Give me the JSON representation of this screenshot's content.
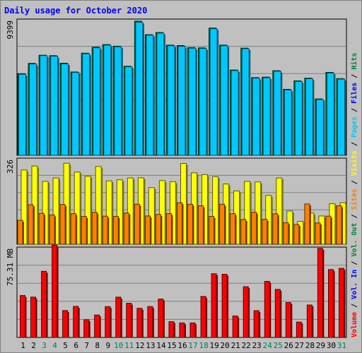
{
  "chart_data": {
    "type": "bar",
    "title": "Daily usage for October 2020",
    "categories": [
      "1",
      "2",
      "3",
      "4",
      "5",
      "6",
      "7",
      "8",
      "9",
      "10",
      "11",
      "12",
      "13",
      "14",
      "15",
      "16",
      "17",
      "18",
      "19",
      "20",
      "21",
      "22",
      "23",
      "24",
      "25",
      "26",
      "27",
      "28",
      "29",
      "30",
      "31"
    ],
    "weekend_days": [
      "3",
      "4",
      "10",
      "11",
      "17",
      "18",
      "24",
      "25",
      "31"
    ],
    "panels": [
      {
        "id": "top",
        "ymax_label": "9399",
        "ylim": [
          0,
          9399
        ],
        "legend": [
          "Hits",
          "Files",
          "Pages"
        ],
        "series": [
          {
            "name": "Hits",
            "color": "#008040",
            "values": [
              5690,
              6410,
              6980,
              6950,
              6420,
              5810,
              7120,
              7540,
              7720,
              7610,
              6210,
              9350,
              8410,
              8560,
              7680,
              7650,
              7510,
              7490,
              8870,
              7680,
              5950,
              7470,
              5420,
              5450,
              5900,
              4600,
              5190,
              5380,
              3930,
              5780,
              5350
            ]
          },
          {
            "name": "Files",
            "color": "#00c8ff",
            "values": [
              5650,
              6370,
              6950,
              6910,
              6380,
              5780,
              7080,
              7500,
              7680,
              7570,
              6170,
              9280,
              8370,
              8520,
              7640,
              7600,
              7470,
              7450,
              8830,
              7640,
              5910,
              7430,
              5380,
              5410,
              5860,
              4560,
              5150,
              5340,
              3890,
              5740,
              5310
            ]
          }
        ]
      },
      {
        "id": "middle",
        "ymax_label": "326",
        "ylim": [
          0,
          326
        ],
        "legend": [
          "Visits",
          "Sites"
        ],
        "series": [
          {
            "name": "Visits",
            "color": "#ffff00",
            "values": [
              286,
              301,
              242,
              255,
              312,
              278,
              262,
              299,
              244,
              248,
              255,
              256,
              218,
              245,
              241,
              311,
              275,
              268,
              260,
              232,
              205,
              242,
              240,
              188,
              255,
              128,
              88,
              120,
              109,
              156,
              160
            ]
          },
          {
            "name": "Sites",
            "color": "#ff8000",
            "values": [
              92,
              152,
              119,
              113,
              153,
              118,
              107,
              123,
              108,
              107,
              120,
              154,
              109,
              115,
              118,
              160,
              154,
              148,
              107,
              154,
              118,
              95,
              123,
              96,
              117,
              83,
              76,
              155,
              82,
              108,
              148
            ]
          }
        ]
      },
      {
        "id": "bottom",
        "ymax_label": "75.31 MB",
        "ylim": [
          0,
          75.31
        ],
        "legend": [
          "Volume",
          "Vol. In",
          "Vol. Out"
        ],
        "series": [
          {
            "name": "Volume",
            "color": "#ff0000",
            "values": [
              35.5,
              34.2,
              56.0,
              78.2,
              22.8,
              26.3,
              15.0,
              19.0,
              26.1,
              34.1,
              28.9,
              24.7,
              26.2,
              32.5,
              13.4,
              12.3,
              12.3,
              34.7,
              54.0,
              53.5,
              18.2,
              43.0,
              22.7,
              47.5,
              40.7,
              29.6,
              13.0,
              27.5,
              75.4,
              57.5,
              58.5
            ]
          }
        ]
      }
    ],
    "right_legend": [
      {
        "text": "Volume",
        "color": "#ff0000"
      },
      {
        "text": " / ",
        "color": "#000000"
      },
      {
        "text": "Vol. In",
        "color": "#0000ff"
      },
      {
        "text": " / ",
        "color": "#000000"
      },
      {
        "text": "Vol. Out",
        "color": "#008040"
      },
      {
        "text": " / ",
        "color": "#000000"
      },
      {
        "text": "Sites",
        "color": "#ff8000"
      },
      {
        "text": " / ",
        "color": "#000000"
      },
      {
        "text": "Visits",
        "color": "#ffff00"
      },
      {
        "text": " / ",
        "color": "#000000"
      },
      {
        "text": "Pages",
        "color": "#00c8ff"
      },
      {
        "text": " / ",
        "color": "#000000"
      },
      {
        "text": "Files",
        "color": "#0000ff"
      },
      {
        "text": " / ",
        "color": "#000000"
      },
      {
        "text": "Hits",
        "color": "#008040"
      }
    ],
    "colors": {
      "background": "#c0c0c0",
      "title": "#0000ff",
      "grid": "#808080",
      "weekday_label": "#000000",
      "weekend_label": "#00805c"
    }
  }
}
